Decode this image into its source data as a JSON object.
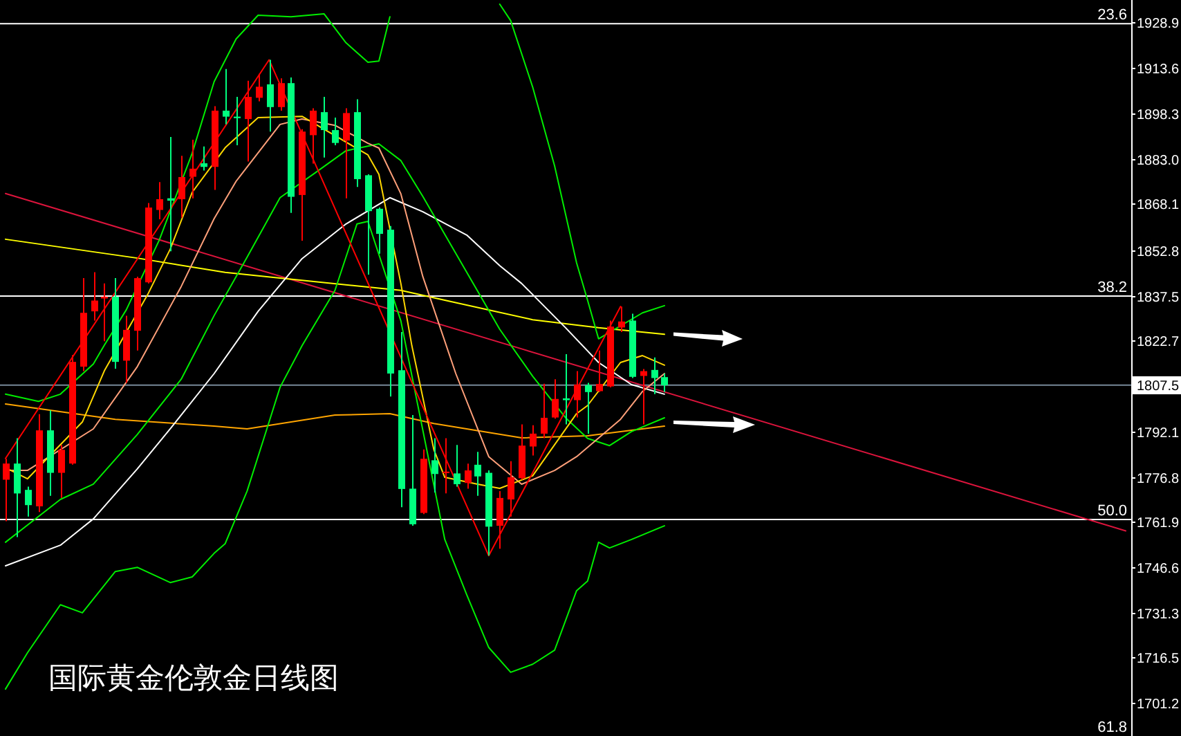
{
  "chart_data": {
    "type": "candlestick",
    "title": "国际黄金伦敦金日线图",
    "categories": [
      null,
      null,
      null,
      null,
      null,
      null,
      null,
      null,
      null,
      null,
      null,
      null,
      null,
      null,
      null,
      null,
      null,
      null,
      null,
      null,
      null,
      null,
      null,
      null,
      null,
      null,
      null,
      null,
      null,
      null,
      null,
      null,
      null,
      null,
      null,
      null,
      null,
      null,
      null,
      null,
      null,
      null,
      null,
      null,
      null,
      null,
      null,
      null,
      null,
      null,
      null,
      null,
      null,
      null,
      null,
      null,
      null,
      null,
      null,
      null,
      null,
      null,
      null,
      null,
      null,
      null,
      null,
      null,
      null,
      null,
      null,
      null,
      null,
      null,
      null,
      null,
      null,
      null,
      null,
      null,
      null,
      null,
      null,
      null,
      null,
      null,
      null,
      null,
      null,
      null,
      null,
      null,
      null,
      null,
      null,
      null,
      null,
      null,
      null,
      null,
      null,
      null,
      null
    ],
    "ohlc": [
      [
        1775.9,
        1782.9,
        1762.0,
        1781.3
      ],
      [
        1781.3,
        1789.8,
        1756.7,
        1771.3
      ],
      [
        1772.5,
        1773.6,
        1763.6,
        1767.4
      ],
      [
        1767.0,
        1797.8,
        1765.1,
        1792.4
      ],
      [
        1792.4,
        1799.1,
        1770.5,
        1778.2
      ],
      [
        1778.2,
        1787.5,
        1769.8,
        1785.9
      ],
      [
        1781.3,
        1817.6,
        1780.9,
        1815.3
      ],
      [
        1813.7,
        1843.3,
        1812.2,
        1831.7
      ],
      [
        1832.2,
        1845.3,
        1829.1,
        1835.8
      ],
      [
        1836.5,
        1841.5,
        1822.2,
        1837.1
      ],
      [
        1837.1,
        1843.3,
        1813.0,
        1815.3
      ],
      [
        1815.7,
        1830.7,
        1808.3,
        1826.0
      ],
      [
        1825.7,
        1843.8,
        1819.1,
        1843.3
      ],
      [
        1841.9,
        1868.4,
        1841.5,
        1866.9
      ],
      [
        1866.1,
        1875.4,
        1863.0,
        1869.7
      ],
      [
        1870.0,
        1890.5,
        1852.3,
        1869.2
      ],
      [
        1869.7,
        1884.2,
        1863.5,
        1877.1
      ],
      [
        1877.2,
        1889.6,
        1870.0,
        1879.9
      ],
      [
        1881.7,
        1887.3,
        1879.3,
        1880.5
      ],
      [
        1880.5,
        1900.8,
        1872.8,
        1899.3
      ],
      [
        1899.3,
        1913.2,
        1894.7,
        1897.3
      ],
      [
        1897.3,
        1903.9,
        1887.7,
        1896.8
      ],
      [
        1896.5,
        1909.3,
        1882.3,
        1903.9
      ],
      [
        1903.6,
        1911.6,
        1902.4,
        1907.3
      ],
      [
        1908.1,
        1916.3,
        1892.3,
        1900.5
      ],
      [
        1900.5,
        1910.1,
        1899.3,
        1908.5
      ],
      [
        1908.5,
        1910.4,
        1865.1,
        1870.5
      ],
      [
        1871.1,
        1893.1,
        1855.8,
        1892.3
      ],
      [
        1891.1,
        1900.1,
        1881.6,
        1899.3
      ],
      [
        1898.8,
        1903.9,
        1883.6,
        1892.8
      ],
      [
        1892.8,
        1897.0,
        1887.7,
        1888.5
      ],
      [
        1889.3,
        1900.1,
        1870.0,
        1898.5
      ],
      [
        1898.8,
        1903.1,
        1873.8,
        1876.4
      ],
      [
        1877.7,
        1878.0,
        1844.5,
        1865.7
      ],
      [
        1866.5,
        1866.9,
        1851.5,
        1858.1
      ],
      [
        1859.5,
        1860.7,
        1803.7,
        1811.4
      ],
      [
        1812.5,
        1825.3,
        1766.7,
        1772.8
      ],
      [
        1772.9,
        1797.5,
        1760.5,
        1761.0
      ],
      [
        1764.8,
        1786.0,
        1764.4,
        1782.9
      ],
      [
        1782.4,
        1789.8,
        1771.6,
        1777.8
      ],
      [
        1778.1,
        1789.8,
        1771.3,
        1778.6
      ],
      [
        1778.0,
        1787.5,
        1773.6,
        1774.4
      ],
      [
        1774.8,
        1781.3,
        1772.9,
        1779.0
      ],
      [
        1780.9,
        1785.2,
        1770.5,
        1777.0
      ],
      [
        1778.2,
        1779.0,
        1750.5,
        1760.2
      ],
      [
        1760.5,
        1772.1,
        1752.8,
        1769.8
      ],
      [
        1769.3,
        1782.1,
        1763.6,
        1776.7
      ],
      [
        1776.4,
        1794.4,
        1775.9,
        1787.3
      ],
      [
        1787.0,
        1794.1,
        1784.0,
        1791.3
      ],
      [
        1791.3,
        1808.0,
        1789.8,
        1796.6
      ],
      [
        1796.7,
        1809.5,
        1796.3,
        1802.9
      ],
      [
        1803.1,
        1817.9,
        1794.4,
        1802.5
      ],
      [
        1802.5,
        1812.2,
        1796.7,
        1807.7
      ],
      [
        1807.5,
        1808.3,
        1791.3,
        1805.2
      ],
      [
        1805.5,
        1819.1,
        1805.2,
        1807.9
      ],
      [
        1807.1,
        1829.1,
        1806.8,
        1827.1
      ],
      [
        1826.8,
        1833.8,
        1825.3,
        1828.8
      ],
      [
        1829.1,
        1831.4,
        1809.9,
        1810.3
      ],
      [
        1810.6,
        1812.9,
        1794.4,
        1812.2
      ],
      [
        1812.6,
        1816.8,
        1804.5,
        1809.9
      ],
      [
        1810.2,
        1811.4,
        1805.2,
        1807.5
      ],
      null,
      null,
      null,
      null,
      null,
      null,
      null,
      null,
      null,
      null,
      null,
      null,
      null,
      null,
      null,
      null,
      null,
      null,
      null,
      null,
      null,
      null,
      null,
      null,
      null,
      null,
      null,
      null,
      null,
      null,
      null,
      null,
      null,
      null,
      null,
      null,
      null,
      null,
      null,
      null,
      null,
      null
    ],
    "colors": [
      "#ff0000",
      "#00ff7f",
      "#00ff7f",
      "#ff0000",
      "#00ff7f",
      "#ff0000",
      "#ff0000",
      "#ff0000",
      "#ff0000",
      "#ff0000",
      "#00ff7f",
      "#ff0000",
      "#ff0000",
      "#ff0000",
      "#ff0000",
      "#00ff7f",
      "#ff0000",
      "#ff0000",
      "#00ff7f",
      "#ff0000",
      "#00ff7f",
      "#00ff7f",
      "#ff0000",
      "#ff0000",
      "#00ff7f",
      "#ff0000",
      "#00ff7f",
      "#ff0000",
      "#ff0000",
      "#00ff7f",
      "#00ff7f",
      "#ff0000",
      "#00ff7f",
      "#00ff7f",
      "#00ff7f",
      "#00ff7f",
      "#00ff7f",
      "#00ff7f",
      "#ff0000",
      "#00ff7f",
      "#ff0000",
      "#00ff7f",
      "#ff0000",
      "#00ff7f",
      "#00ff7f",
      "#ff0000",
      "#ff0000",
      "#ff0000",
      "#ff0000",
      "#ff0000",
      "#ff0000",
      "#00ff7f",
      "#ff0000",
      "#00ff7f",
      "#ff0000",
      "#ff0000",
      "#ff0000",
      "#00ff7f",
      "#ff0000",
      "#00ff7f",
      "#00ff7f",
      null,
      null,
      null,
      null,
      null,
      null,
      null,
      null,
      null,
      null,
      null,
      null,
      null,
      null,
      null,
      null,
      null,
      null,
      null,
      null,
      null,
      null,
      null,
      null,
      null,
      null,
      null,
      null,
      null,
      null,
      null,
      null,
      null,
      null,
      null,
      null,
      null,
      null,
      null,
      null,
      null,
      null
    ],
    "series": [
      {
        "type": "line",
        "color": "#dc143c",
        "values": [
          1871.6,
          null,
          null,
          null,
          null,
          null,
          null,
          null,
          null,
          null,
          null,
          null,
          null,
          null,
          null,
          null,
          null,
          null,
          null,
          null,
          null,
          null,
          null,
          null,
          null,
          null,
          null,
          null,
          null,
          null,
          null,
          null,
          null,
          null,
          null,
          null,
          null,
          null,
          null,
          null,
          null,
          null,
          null,
          null,
          null,
          null,
          null,
          null,
          null,
          null,
          null,
          null,
          null,
          null,
          null,
          null,
          null,
          null,
          null,
          null,
          null,
          null,
          null,
          null,
          null,
          null,
          null,
          null,
          null,
          null,
          null,
          null,
          null,
          null,
          null,
          null,
          null,
          null,
          null,
          null,
          null,
          null,
          null,
          null,
          null,
          null,
          null,
          null,
          null,
          null,
          null,
          null,
          null,
          null,
          null,
          null,
          null,
          null,
          null,
          null,
          null,
          null,
          1758.8
        ]
      },
      {
        "type": "line",
        "color": "#ffff00",
        "values": [
          1856.3,
          null,
          null,
          null,
          null,
          null,
          null,
          null,
          null,
          null,
          null,
          null,
          1850.0,
          null,
          null,
          null,
          null,
          null,
          null,
          null,
          1845.2,
          null,
          null,
          null,
          null,
          1843.3,
          null,
          null,
          null,
          null,
          null,
          null,
          null,
          null,
          null,
          null,
          1839.2,
          null,
          null,
          null,
          1835.9,
          null,
          null,
          null,
          null,
          null,
          null,
          null,
          1829.4,
          null,
          null,
          null,
          null,
          null,
          1826.7,
          null,
          null,
          null,
          null,
          null,
          1824.5,
          null,
          null,
          null,
          null,
          null,
          null,
          null,
          null,
          null,
          null,
          null,
          null,
          null,
          null,
          null,
          null,
          null,
          null,
          null,
          null,
          null,
          null,
          null,
          null,
          null,
          null,
          null,
          null,
          null,
          null,
          null,
          null,
          null,
          null,
          null,
          null,
          null,
          null,
          null,
          null,
          null,
          null
        ]
      },
      {
        "type": "line",
        "color": "#ffa500",
        "values": [
          1801.2,
          null,
          null,
          null,
          null,
          null,
          null,
          null,
          null,
          null,
          1796.1,
          null,
          null,
          null,
          null,
          null,
          null,
          null,
          null,
          1793.8,
          null,
          null,
          1792.9,
          null,
          null,
          null,
          null,
          null,
          null,
          null,
          1797.5,
          null,
          null,
          null,
          null,
          1798.0,
          null,
          null,
          null,
          1794.7,
          null,
          null,
          null,
          null,
          null,
          null,
          null,
          1789.9,
          null,
          null,
          null,
          null,
          null,
          1790.6,
          null,
          null,
          null,
          null,
          null,
          null,
          1793.8,
          null,
          null,
          null,
          null,
          null,
          null,
          null,
          null,
          null,
          null,
          null,
          null,
          null,
          null,
          null,
          null,
          null,
          null,
          null,
          null,
          null,
          null,
          null,
          null,
          null,
          null,
          null,
          null,
          null,
          null,
          null,
          null,
          null,
          null,
          null,
          null,
          null,
          null,
          null,
          null,
          null,
          null
        ]
      },
      {
        "type": "line",
        "color": "#ffffff",
        "values": [
          1747.1,
          null,
          null,
          null,
          null,
          1754.0,
          null,
          null,
          1762.8,
          null,
          null,
          null,
          1779.5,
          null,
          null,
          1792.9,
          null,
          null,
          null,
          1811.4,
          null,
          null,
          null,
          1832.2,
          null,
          null,
          null,
          1849.8,
          null,
          null,
          null,
          1861.4,
          null,
          null,
          null,
          1870.2,
          null,
          null,
          1865.5,
          null,
          null,
          null,
          1857.7,
          null,
          null,
          1847.5,
          null,
          1841.5,
          null,
          null,
          null,
          1826.7,
          null,
          null,
          1815.1,
          null,
          null,
          1807.7,
          null,
          null,
          1804.5,
          null,
          null,
          null,
          null,
          null,
          null,
          null,
          null,
          null,
          null,
          null,
          null,
          null,
          null,
          null,
          null,
          null,
          null,
          null,
          null,
          null,
          null,
          null,
          null,
          null,
          null,
          null,
          null,
          null,
          null,
          null,
          null,
          null,
          null,
          null,
          null,
          null,
          null,
          null,
          null,
          null,
          null
        ]
      },
      {
        "type": "line",
        "color": "#00ee00",
        "values": [
          1804.5,
          null,
          null,
          1802.1,
          null,
          1804.5,
          null,
          null,
          1814.6,
          1820.9,
          null,
          1832.7,
          null,
          null,
          1856.0,
          null,
          null,
          1885.1,
          null,
          1909.0,
          null,
          1923.3,
          null,
          1931.2,
          null,
          null,
          1930.7,
          null,
          null,
          1931.7,
          null,
          1922.0,
          null,
          1915.5,
          1915.9,
          1930.7,
          null,
          null,
          null,
          null,
          null,
          null,
          null,
          null,
          null,
          null,
          null,
          null,
          null,
          null,
          null,
          null,
          null,
          null,
          null,
          null,
          null,
          null,
          null,
          null,
          null,
          null,
          null,
          null,
          null,
          null,
          null,
          null,
          null,
          null,
          null,
          null,
          null,
          null,
          null,
          null,
          null,
          null,
          null,
          null,
          null,
          null,
          null,
          null,
          null,
          null,
          null,
          null,
          null,
          null,
          null,
          null,
          null,
          null,
          null,
          null,
          null,
          null,
          null,
          null,
          null,
          null,
          null
        ]
      },
      {
        "type": "line",
        "color": "#00ee00",
        "values": [
          null,
          null,
          null,
          null,
          null,
          null,
          null,
          null,
          null,
          null,
          null,
          null,
          null,
          null,
          null,
          null,
          null,
          null,
          null,
          null,
          null,
          null,
          null,
          null,
          null,
          null,
          null,
          null,
          null,
          null,
          null,
          null,
          null,
          null,
          null,
          null,
          null,
          null,
          null,
          null,
          null,
          null,
          null,
          null,
          null,
          1934.9,
          1929.4,
          null,
          1907.2,
          null,
          1880.8,
          null,
          1848.4,
          1835.9,
          1823.0,
          null,
          null,
          null,
          1831.7,
          null,
          1834.1,
          null,
          null,
          null,
          null,
          null,
          null,
          null,
          null,
          null,
          null,
          null,
          null,
          null,
          null,
          null,
          null,
          null,
          null,
          null,
          null,
          null,
          null,
          null,
          null,
          null,
          null,
          null,
          null,
          null,
          null,
          null,
          null,
          null,
          null,
          null,
          null,
          null,
          null,
          null,
          null,
          null,
          null
        ]
      },
      {
        "type": "line",
        "color": "#00ee00",
        "values": [
          1755.0,
          null,
          null,
          null,
          null,
          1769.3,
          null,
          null,
          1774.4,
          null,
          null,
          null,
          1791.0,
          null,
          null,
          null,
          1809.5,
          null,
          null,
          1830.8,
          null,
          null,
          1850.3,
          null,
          null,
          1870.2,
          null,
          null,
          1878.0,
          null,
          null,
          1885.9,
          null,
          null,
          1888.2,
          null,
          1882.6,
          null,
          1870.6,
          null,
          null,
          1851.6,
          null,
          null,
          null,
          1826.2,
          null,
          null,
          1810.5,
          null,
          null,
          1796.6,
          null,
          1789.7,
          null,
          1787.3,
          null,
          1792.0,
          null,
          null,
          1796.6,
          null,
          null,
          null,
          null,
          null,
          null,
          null,
          null,
          null,
          null,
          null,
          null,
          null,
          null,
          null,
          null,
          null,
          null,
          null,
          null,
          null,
          null,
          null,
          null,
          null,
          null,
          null,
          null,
          null,
          null,
          null,
          null,
          null,
          null,
          null,
          null,
          null,
          null,
          null,
          null,
          null,
          null
        ]
      },
      {
        "type": "line",
        "color": "#00ee00",
        "values": [
          1705.9,
          null,
          1718.0,
          null,
          null,
          1734.1,
          null,
          1731.4,
          null,
          null,
          1745.2,
          null,
          1746.6,
          null,
          null,
          1741.5,
          null,
          1743.4,
          null,
          1751.3,
          1754.5,
          null,
          1772.1,
          null,
          1795.2,
          1806.8,
          null,
          1820.7,
          null,
          null,
          1839.2,
          null,
          1861.4,
          1862.3,
          null,
          null,
          1829.0,
          null,
          null,
          null,
          1755.9,
          null,
          1737.4,
          null,
          1719.8,
          null,
          1711.5,
          null,
          1714.2,
          null,
          1718.9,
          null,
          1738.8,
          1742.0,
          1755.0,
          1753.1,
          null,
          1755.9,
          null,
          null,
          1760.5,
          null,
          null,
          null,
          null,
          null,
          null,
          null,
          null,
          null,
          null,
          null,
          null,
          null,
          null,
          null,
          null,
          null,
          null,
          null,
          null,
          null,
          null,
          null,
          null,
          null,
          null,
          null,
          null,
          null,
          null,
          null,
          null,
          null,
          null,
          null,
          null,
          null,
          null,
          null,
          null,
          null,
          null
        ]
      },
      {
        "type": "line",
        "color": "#ffa07a",
        "values": [
          1779.0,
          null,
          1779.0,
          null,
          null,
          null,
          null,
          null,
          1792.9,
          null,
          null,
          null,
          1813.7,
          null,
          null,
          null,
          1840.5,
          null,
          null,
          1863.2,
          null,
          1875.7,
          null,
          null,
          null,
          1894.7,
          null,
          1896.5,
          null,
          null,
          1894.4,
          null,
          null,
          1888.4,
          1886.8,
          null,
          1871.5,
          null,
          1843.8,
          null,
          null,
          1811.4,
          null,
          null,
          1783.6,
          null,
          null,
          1774.4,
          null,
          null,
          1779.0,
          null,
          1783.6,
          null,
          null,
          null,
          1796.1,
          null,
          1805.4,
          null,
          1811.4,
          null,
          null,
          null,
          null,
          null,
          null,
          null,
          null,
          null,
          null,
          null,
          null,
          null,
          null,
          null,
          null,
          null,
          null,
          null,
          null,
          null,
          null,
          null,
          null,
          null,
          null,
          null,
          null,
          null,
          null,
          null,
          null,
          null,
          null,
          null,
          null,
          null,
          null,
          null,
          null,
          null,
          null
        ]
      },
      {
        "type": "line",
        "color": "#ffd700",
        "values": [
          1779.9,
          null,
          1776.2,
          null,
          null,
          null,
          null,
          1795.2,
          null,
          1812.3,
          null,
          null,
          null,
          1838.2,
          null,
          1853.0,
          null,
          1872.0,
          null,
          null,
          1886.9,
          null,
          null,
          1897.0,
          null,
          null,
          null,
          1897.4,
          null,
          null,
          null,
          null,
          null,
          1884.5,
          1878.0,
          null,
          1841.5,
          1820.7,
          null,
          1786.0,
          1776.7,
          null,
          null,
          1774.4,
          null,
          1773.0,
          null,
          null,
          1777.2,
          null,
          null,
          null,
          1798.0,
          1800.7,
          null,
          null,
          1815.1,
          null,
          1817.4,
          null,
          1814.2,
          null,
          null,
          null,
          null,
          null,
          null,
          null,
          null,
          null,
          null,
          null,
          null,
          null,
          null,
          null,
          null,
          null,
          null,
          null,
          null,
          null,
          null,
          null,
          null,
          null,
          null,
          null,
          null,
          null,
          null,
          null,
          null,
          null,
          null,
          null,
          null,
          null,
          null,
          null,
          null,
          null,
          null
        ]
      },
      {
        "type": "line",
        "color": "#ff0000",
        "values": [
          1783.0,
          null,
          null,
          null,
          null,
          null,
          null,
          null,
          null,
          null,
          null,
          null,
          null,
          null,
          null,
          null,
          null,
          null,
          null,
          null,
          null,
          null,
          null,
          null,
          1916.3,
          null,
          null,
          null,
          null,
          null,
          null,
          null,
          null,
          null,
          null,
          null,
          null,
          null,
          null,
          null,
          null,
          null,
          null,
          null,
          1750.5,
          null,
          null,
          null,
          null,
          null,
          null,
          null,
          null,
          null,
          null,
          null,
          1833.8,
          null,
          null,
          null,
          null,
          null,
          null,
          null,
          null,
          null,
          null,
          null,
          null,
          null,
          null,
          null,
          null,
          null,
          null,
          null,
          null,
          null,
          null,
          null,
          null,
          null,
          null,
          null,
          null,
          null,
          null,
          null,
          null,
          null,
          null,
          null,
          null,
          null,
          null,
          null,
          null,
          null,
          null,
          null,
          null,
          null,
          null
        ]
      }
    ],
    "ylim": [
      1690.2,
      1936.3
    ],
    "yticks": [
      1928.9,
      1913.6,
      1898.3,
      {
        "value": 1883.0,
        "label": "1883.0"
      },
      1868.1,
      1852.8,
      1837.5,
      1822.7,
      1807.5,
      1792.1,
      1776.8,
      1761.9,
      1746.6,
      1731.3,
      1716.5,
      1701.2
    ],
    "ref_lines": [
      {
        "axis": "y",
        "value": 1928.4,
        "color": "#ffffff"
      },
      {
        "axis": "y",
        "value": 1837.3,
        "color": "#ffffff"
      },
      {
        "axis": "y",
        "value": 1762.6,
        "color": "#ffffff"
      },
      {
        "axis": "y",
        "value": 1807.5,
        "color": "#778899"
      }
    ],
    "annotations": [
      {
        "text": "23.6",
        "y": 1928.4
      },
      {
        "text": "38.2",
        "y": 1837.3
      },
      {
        "text": "50.0",
        "y": 1762.6
      },
      "61.8"
    ]
  }
}
